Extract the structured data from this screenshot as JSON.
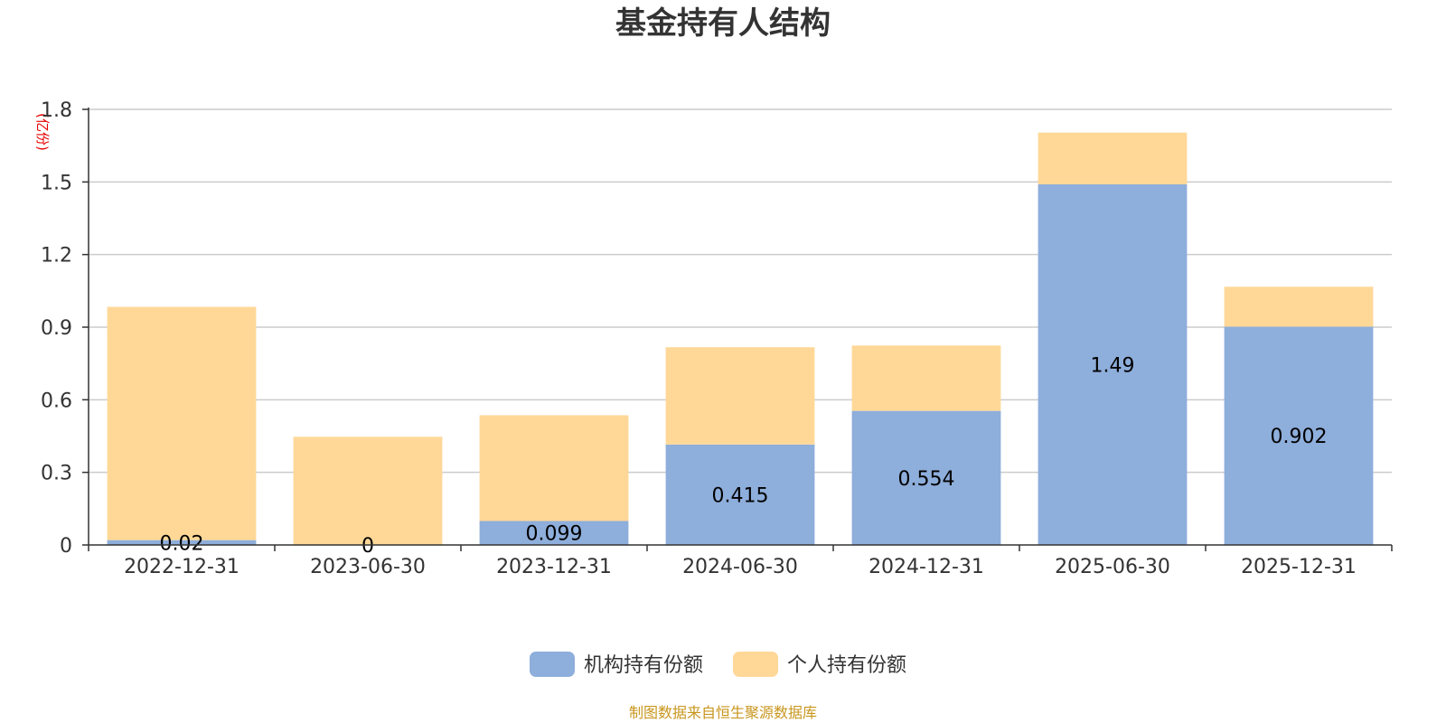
{
  "chart_data": {
    "type": "bar",
    "stacked": true,
    "title": "基金持有人结构",
    "ylabel": "(亿份)",
    "xlabel": "",
    "ylim": [
      0,
      1.8
    ],
    "yticks": [
      0,
      0.3,
      0.6,
      0.9,
      1.2,
      1.5,
      1.8
    ],
    "ytick_labels": [
      "0",
      "0.3",
      "0.6",
      "0.9",
      "1.2",
      "1.5",
      "1.8"
    ],
    "grid": true,
    "categories": [
      "2022-12-31",
      "2023-06-30",
      "2023-12-31",
      "2024-06-30",
      "2024-12-31",
      "2025-06-30",
      "2025-12-31"
    ],
    "series": [
      {
        "name": "机构持有份额",
        "color": "#8eaedb",
        "values": [
          0.02,
          0,
          0.099,
          0.415,
          0.554,
          1.49,
          0.902
        ],
        "labels": [
          "0.02",
          "0",
          "0.099",
          "0.415",
          "0.554",
          "1.49",
          "0.902"
        ]
      },
      {
        "name": "个人持有份额",
        "color": "#ffd898",
        "values": [
          0.964,
          0.447,
          0.437,
          0.402,
          0.27,
          0.214,
          0.165
        ]
      }
    ],
    "legend_position": "bottom-center",
    "source": "制图数据来自恒生聚源数据库"
  }
}
